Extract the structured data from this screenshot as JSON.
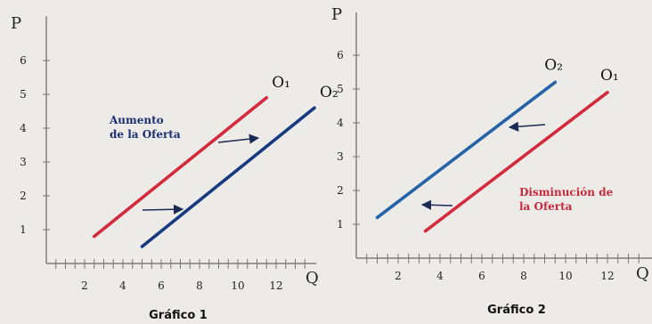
{
  "chart_data": [
    {
      "type": "line",
      "caption": "Gráfico 1",
      "xlabel": "Q",
      "ylabel": "P",
      "xlim": [
        0,
        14
      ],
      "ylim": [
        0,
        6.5
      ],
      "x_ticks": [
        2,
        4,
        6,
        8,
        10,
        12
      ],
      "y_ticks": [
        1,
        2,
        3,
        4,
        5,
        6
      ],
      "grid": false,
      "series": [
        {
          "name": "O₁",
          "color": "#d42a3c",
          "x": [
            2.5,
            11.5
          ],
          "y": [
            0.8,
            4.9
          ]
        },
        {
          "name": "O₂",
          "color": "#173a80",
          "x": [
            5,
            14
          ],
          "y": [
            0.5,
            4.6
          ]
        }
      ],
      "annotation": {
        "text_lines": [
          "Aumento",
          "de la Oferta"
        ],
        "color": "#1c2f73"
      }
    },
    {
      "type": "line",
      "caption": "Gráfico 2",
      "xlabel": "Q",
      "ylabel": "P",
      "xlim": [
        0,
        13.5
      ],
      "ylim": [
        0,
        6.5
      ],
      "x_ticks": [
        2,
        4,
        6,
        8,
        10,
        12
      ],
      "y_ticks": [
        1,
        2,
        3,
        4,
        5,
        6
      ],
      "grid": false,
      "series": [
        {
          "name": "O₂",
          "color": "#2563a8",
          "x": [
            1,
            9.5
          ],
          "y": [
            1.2,
            5.2
          ]
        },
        {
          "name": "O₁",
          "color": "#d42a3c",
          "x": [
            3.3,
            12
          ],
          "y": [
            0.8,
            4.9
          ]
        }
      ],
      "annotation": {
        "text_lines": [
          "Disminución de",
          "la Oferta"
        ],
        "color": "#c8283a"
      }
    }
  ]
}
